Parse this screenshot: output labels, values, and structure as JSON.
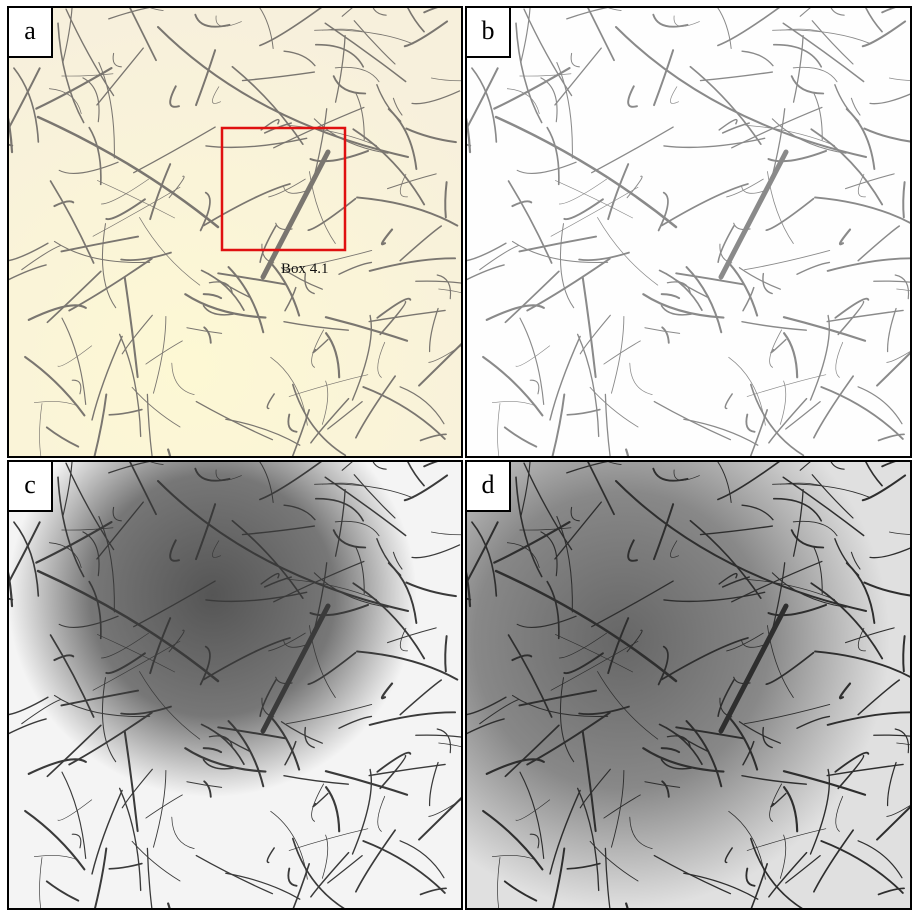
{
  "panels": [
    {
      "label": "a"
    },
    {
      "label": "b"
    },
    {
      "label": "c"
    },
    {
      "label": "d"
    }
  ],
  "annotation": "Box 4.1"
}
